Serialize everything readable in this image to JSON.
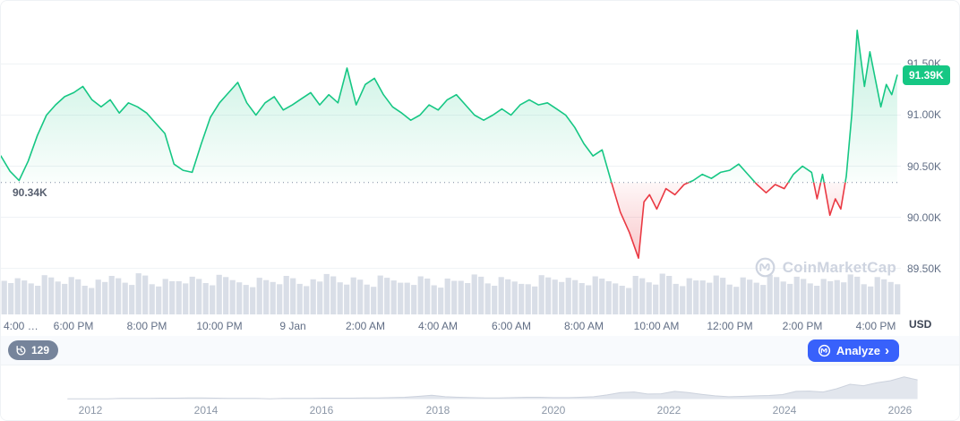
{
  "chart": {
    "currency_label": "USD",
    "watermark": "CoinMarketCap"
  },
  "toolbar": {
    "history_count": "129",
    "analyze_label": "Analyze",
    "analyze_chevron": "›"
  },
  "colors": {
    "green": "#16c784",
    "red": "#ea3943",
    "blue": "#3861fb",
    "axis_text": "#616e85",
    "grid": "#eff2f5",
    "volume_bar": "#d9dee7",
    "navigator_fill": "#e2e6ed"
  },
  "chart_data": [
    {
      "type": "line",
      "name": "price-intraday",
      "title": "",
      "xlabel": "",
      "ylabel": "USD",
      "x_unit": "hours since 4:00 PM (Jan 8)",
      "x_tick_labels": [
        "4:00 …",
        "6:00 PM",
        "8:00 PM",
        "10:00 PM",
        "9 Jan",
        "2:00 AM",
        "4:00 AM",
        "6:00 AM",
        "8:00 AM",
        "10:00 AM",
        "12:00 PM",
        "2:00 PM",
        "4:00 PM"
      ],
      "x_tick_values": [
        0,
        2,
        4,
        6,
        8,
        10,
        12,
        14,
        16,
        18,
        20,
        22,
        24
      ],
      "y_tick_labels": [
        "91.50K",
        "91.00K",
        "90.50K",
        "90.00K",
        "89.50K"
      ],
      "y_tick_values": [
        91500,
        91000,
        90500,
        90000,
        89500
      ],
      "xlim": [
        0,
        24.7
      ],
      "ylim": [
        89470,
        92100
      ],
      "grid": true,
      "legend": "none",
      "baseline_value": 90340,
      "baseline_label": "90.34K",
      "last_value": 91390,
      "last_value_label": "91.39K",
      "points": [
        [
          0,
          90600
        ],
        [
          0.25,
          90450
        ],
        [
          0.5,
          90360
        ],
        [
          0.75,
          90550
        ],
        [
          1,
          90800
        ],
        [
          1.25,
          91000
        ],
        [
          1.5,
          91100
        ],
        [
          1.75,
          91180
        ],
        [
          2,
          91220
        ],
        [
          2.25,
          91280
        ],
        [
          2.5,
          91150
        ],
        [
          2.75,
          91080
        ],
        [
          3,
          91150
        ],
        [
          3.25,
          91020
        ],
        [
          3.5,
          91120
        ],
        [
          3.75,
          91080
        ],
        [
          4,
          91020
        ],
        [
          4.25,
          90920
        ],
        [
          4.5,
          90820
        ],
        [
          4.75,
          90520
        ],
        [
          5,
          90460
        ],
        [
          5.25,
          90440
        ],
        [
          5.5,
          90720
        ],
        [
          5.75,
          90980
        ],
        [
          6,
          91120
        ],
        [
          6.25,
          91220
        ],
        [
          6.5,
          91320
        ],
        [
          6.75,
          91120
        ],
        [
          7,
          91000
        ],
        [
          7.25,
          91120
        ],
        [
          7.5,
          91180
        ],
        [
          7.75,
          91050
        ],
        [
          8,
          91100
        ],
        [
          8.25,
          91160
        ],
        [
          8.5,
          91220
        ],
        [
          8.75,
          91100
        ],
        [
          9,
          91200
        ],
        [
          9.25,
          91120
        ],
        [
          9.5,
          91460
        ],
        [
          9.75,
          91100
        ],
        [
          10,
          91300
        ],
        [
          10.25,
          91360
        ],
        [
          10.5,
          91200
        ],
        [
          10.75,
          91080
        ],
        [
          11,
          91020
        ],
        [
          11.25,
          90950
        ],
        [
          11.5,
          91000
        ],
        [
          11.75,
          91100
        ],
        [
          12,
          91050
        ],
        [
          12.25,
          91150
        ],
        [
          12.5,
          91200
        ],
        [
          12.75,
          91100
        ],
        [
          13,
          91000
        ],
        [
          13.25,
          90950
        ],
        [
          13.5,
          91000
        ],
        [
          13.75,
          91060
        ],
        [
          14,
          91000
        ],
        [
          14.25,
          91100
        ],
        [
          14.5,
          91150
        ],
        [
          14.75,
          91100
        ],
        [
          15,
          91120
        ],
        [
          15.25,
          91060
        ],
        [
          15.5,
          91000
        ],
        [
          15.75,
          90880
        ],
        [
          16,
          90720
        ],
        [
          16.25,
          90600
        ],
        [
          16.5,
          90660
        ],
        [
          16.75,
          90350
        ],
        [
          17,
          90050
        ],
        [
          17.25,
          89850
        ],
        [
          17.5,
          89600
        ],
        [
          17.65,
          90150
        ],
        [
          17.8,
          90220
        ],
        [
          18,
          90080
        ],
        [
          18.25,
          90280
        ],
        [
          18.5,
          90220
        ],
        [
          18.75,
          90320
        ],
        [
          19,
          90360
        ],
        [
          19.25,
          90420
        ],
        [
          19.5,
          90380
        ],
        [
          19.75,
          90440
        ],
        [
          20,
          90460
        ],
        [
          20.25,
          90520
        ],
        [
          20.5,
          90420
        ],
        [
          20.75,
          90320
        ],
        [
          21,
          90240
        ],
        [
          21.25,
          90320
        ],
        [
          21.5,
          90280
        ],
        [
          21.75,
          90420
        ],
        [
          22,
          90500
        ],
        [
          22.25,
          90440
        ],
        [
          22.4,
          90180
        ],
        [
          22.55,
          90420
        ],
        [
          22.75,
          90020
        ],
        [
          22.9,
          90180
        ],
        [
          23.05,
          90080
        ],
        [
          23.2,
          90400
        ],
        [
          23.35,
          91000
        ],
        [
          23.5,
          91830
        ],
        [
          23.7,
          91280
        ],
        [
          23.85,
          91620
        ],
        [
          24,
          91350
        ],
        [
          24.15,
          91080
        ],
        [
          24.3,
          91300
        ],
        [
          24.45,
          91200
        ],
        [
          24.6,
          91390
        ]
      ],
      "volume_relative": [
        0.75,
        0.82,
        0.68,
        0.9,
        0.73,
        0.85,
        0.62,
        0.78,
        0.88,
        0.7,
        0.95,
        0.66,
        0.8,
        0.74,
        0.86,
        0.69,
        0.91,
        0.77,
        0.64,
        0.83,
        0.72,
        0.88,
        0.67,
        0.79,
        0.93,
        0.71,
        0.84,
        0.65,
        0.89,
        0.76,
        0.7,
        0.87,
        0.63,
        0.81,
        0.75,
        0.92,
        0.68,
        0.85,
        0.73,
        0.66,
        0.9,
        0.78,
        0.83,
        0.69,
        0.87,
        0.74,
        0.62,
        0.88,
        0.71,
        0.94,
        0.67,
        0.82,
        0.76,
        0.89,
        0.65,
        0.84,
        0.7,
        0.91,
        0.73,
        0.86,
        0.68,
        0.8,
        0.77,
        0.92,
        0.66,
        0.85,
        0.72
      ]
    },
    {
      "type": "area",
      "name": "history-navigator",
      "x_tick_labels": [
        "2012",
        "2014",
        "2016",
        "2018",
        "2020",
        "2022",
        "2024",
        "2026"
      ],
      "x_tick_values": [
        2012,
        2014,
        2016,
        2018,
        2020,
        2022,
        2024,
        2026
      ],
      "xlim": [
        2010.45,
        2027.05
      ],
      "x_start": 2011.6,
      "x_end": 2026.3,
      "values_relative": [
        0.01,
        0.01,
        0.01,
        0.01,
        0.02,
        0.02,
        0.02,
        0.03,
        0.03,
        0.04,
        0.04,
        0.03,
        0.02,
        0.02,
        0.02,
        0.01,
        0.02,
        0.02,
        0.02,
        0.03,
        0.03,
        0.03,
        0.04,
        0.04,
        0.05,
        0.06,
        0.09,
        0.13,
        0.08,
        0.06,
        0.05,
        0.04,
        0.04,
        0.05,
        0.06,
        0.06,
        0.05,
        0.05,
        0.06,
        0.08,
        0.14,
        0.22,
        0.24,
        0.17,
        0.18,
        0.26,
        0.22,
        0.16,
        0.11,
        0.08,
        0.09,
        0.11,
        0.12,
        0.15,
        0.26,
        0.27,
        0.24,
        0.35,
        0.5,
        0.45,
        0.55,
        0.62,
        0.75,
        0.65
      ]
    }
  ]
}
